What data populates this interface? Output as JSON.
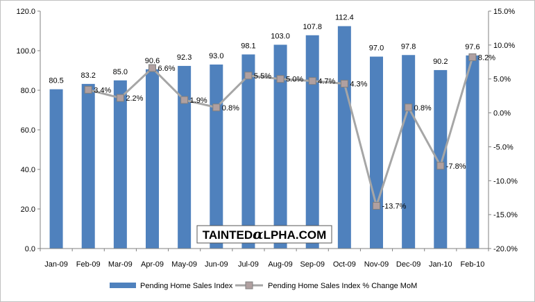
{
  "chart_data": {
    "type": "bar",
    "title": "",
    "categories": [
      "Jan-09",
      "Feb-09",
      "Mar-09",
      "Apr-09",
      "May-09",
      "Jun-09",
      "Jul-09",
      "Aug-09",
      "Sep-09",
      "Oct-09",
      "Nov-09",
      "Dec-09",
      "Jan-10",
      "Feb-10"
    ],
    "series": [
      {
        "name": "Pending Home Sales Index",
        "type": "bar",
        "axis": "left",
        "color": "#4F81BD",
        "values": [
          80.5,
          83.2,
          85.0,
          90.6,
          92.3,
          93.0,
          98.1,
          103.0,
          107.8,
          112.4,
          97.0,
          97.8,
          90.2,
          97.6
        ],
        "labels": [
          "80.5",
          "83.2",
          "85.0",
          "90.6",
          "92.3",
          "93.0",
          "98.1",
          "103.0",
          "107.8",
          "112.4",
          "97.0",
          "97.8",
          "90.2",
          "97.6"
        ]
      },
      {
        "name": "Pending Home Sales Index % Change MoM",
        "type": "line",
        "axis": "right",
        "color": "#A6A6A6",
        "marker_color": "#B0A0A0",
        "values": [
          null,
          3.4,
          2.2,
          6.6,
          1.9,
          0.8,
          5.5,
          5.0,
          4.7,
          4.3,
          -13.7,
          0.8,
          -7.8,
          8.2
        ],
        "labels": [
          null,
          "3.4%",
          "2.2%",
          "6.6%",
          "1.9%",
          "0.8%",
          "5.5%",
          "5.0%",
          "4.7%",
          "4.3%",
          "-13.7%",
          "0.8%",
          "-7.8%",
          "8.2%"
        ]
      }
    ],
    "y_left": {
      "min": 0,
      "max": 120,
      "step": 20,
      "tick_labels": [
        "0.0",
        "20.0",
        "40.0",
        "60.0",
        "80.0",
        "100.0",
        "120.0"
      ]
    },
    "y_right": {
      "min": -20,
      "max": 15,
      "step": 5,
      "tick_labels": [
        "-20.0%",
        "-15.0%",
        "-10.0%",
        "-5.0%",
        "0.0%",
        "5.0%",
        "10.0%",
        "15.0%"
      ]
    },
    "grid": false,
    "legend_position": "bottom",
    "watermark": "TaintedAlpha.com"
  }
}
